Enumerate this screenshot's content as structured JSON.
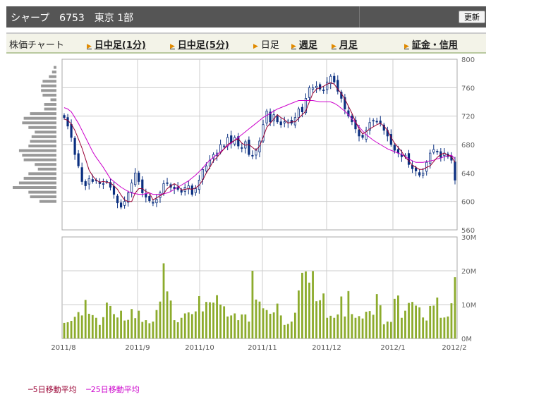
{
  "header": {
    "title": "シャープ　6753　東京 1部",
    "refresh_label": "更新"
  },
  "tabs": [
    {
      "label": "株価チャート",
      "link": false,
      "arrow": false
    },
    {
      "label": "日中足(1分)",
      "link": true,
      "arrow": true
    },
    {
      "label": "日中足(5分)",
      "link": true,
      "arrow": true
    },
    {
      "label": "日足",
      "link": false,
      "arrow": true
    },
    {
      "label": "週足",
      "link": true,
      "arrow": true
    },
    {
      "label": "月足",
      "link": true,
      "arrow": true
    },
    {
      "label": "証金・信用",
      "link": true,
      "arrow": true
    }
  ],
  "legend": {
    "ma5_label": "─5日移動平均",
    "ma25_label": "─25日移動平均",
    "ma5_color": "#990033",
    "ma25_color": "#cc00cc"
  },
  "colors": {
    "candle": "#0a2f80",
    "volume": "#8cab2c",
    "volume_profile": "#999999",
    "grid": "#cccccc"
  },
  "chart_data": [
    {
      "type": "candlestick",
      "title": "",
      "x_tick_labels": [
        "2011/8",
        "2011/9",
        "2011/10",
        "2011/11",
        "2011/12",
        "2012/1",
        "2012/2"
      ],
      "y_ticks": [
        560,
        600,
        640,
        680,
        720,
        760,
        800
      ],
      "ylim": [
        560,
        800
      ],
      "closes": [
        718,
        706,
        690,
        666,
        650,
        628,
        622,
        632,
        628,
        630,
        625,
        625,
        628,
        620,
        610,
        598,
        592,
        600,
        612,
        626,
        640,
        628,
        612,
        606,
        601,
        598,
        603,
        612,
        625,
        626,
        620,
        618,
        617,
        613,
        620,
        622,
        610,
        618,
        630,
        645,
        650,
        658,
        666,
        668,
        680,
        678,
        690,
        682,
        690,
        678,
        675,
        684,
        666,
        664,
        672,
        685,
        708,
        727,
        712,
        722,
        712,
        708,
        712,
        713,
        710,
        718,
        730,
        726,
        745,
        760,
        760,
        762,
        758,
        756,
        768,
        776,
        768,
        755,
        745,
        730,
        720,
        712,
        702,
        692,
        690,
        700,
        711,
        714,
        712,
        710,
        700,
        692,
        680,
        672,
        668,
        663,
        665,
        652,
        646,
        643,
        637,
        640,
        655,
        668,
        673,
        670,
        662,
        668,
        663,
        658,
        630
      ],
      "ma5": [
        716,
        714,
        709,
        700,
        688,
        675,
        660,
        644,
        636,
        630,
        627,
        628,
        627,
        626,
        622,
        617,
        609,
        602,
        600,
        600,
        612,
        618,
        618,
        614,
        612,
        602,
        605,
        608,
        611,
        618,
        622,
        625,
        622,
        616,
        617,
        618,
        617,
        619,
        623,
        630,
        640,
        648,
        657,
        662,
        668,
        674,
        680,
        683,
        686,
        688,
        682,
        679,
        680,
        676,
        672,
        678,
        690,
        704,
        710,
        716,
        722,
        718,
        715,
        710,
        712,
        712,
        717,
        722,
        727,
        740,
        752,
        758,
        760,
        762,
        765,
        767,
        765,
        758,
        752,
        744,
        734,
        724,
        712,
        702,
        695,
        698,
        702,
        705,
        708,
        710,
        706,
        700,
        690,
        682,
        676,
        670,
        662,
        657,
        651,
        648,
        645,
        645,
        648,
        650,
        656,
        662,
        666,
        668,
        665,
        663,
        655
      ],
      "ma25": [
        732,
        730,
        726,
        718,
        710,
        700,
        690,
        680,
        670,
        662,
        655,
        648,
        640,
        632,
        628,
        624,
        620,
        617,
        614,
        612,
        611,
        610,
        610,
        611,
        612,
        610,
        610,
        610,
        611,
        612,
        614,
        617,
        620,
        623,
        626,
        629,
        633,
        637,
        642,
        647,
        653,
        658,
        662,
        666,
        670,
        674,
        678,
        682,
        686,
        690,
        694,
        698,
        702,
        706,
        710,
        714,
        718,
        721,
        724,
        727,
        730,
        732,
        734,
        736,
        738,
        740,
        742,
        742,
        742,
        742,
        742,
        741,
        740,
        740,
        740,
        740,
        738,
        735,
        731,
        727,
        722,
        716,
        711,
        705,
        699,
        694,
        690,
        686,
        683,
        680,
        677,
        674,
        672,
        670,
        668,
        666,
        663,
        660,
        657,
        655,
        655,
        655,
        656,
        657,
        658,
        660,
        661,
        663,
        664,
        665,
        660
      ],
      "volume_profile": {
        "count": 30,
        "levels_note": ""
      }
    },
    {
      "type": "bar",
      "title": "",
      "y_tick_labels": [
        "0M",
        "10M",
        "20M",
        "30M"
      ],
      "ylim": [
        0,
        30
      ],
      "values": [
        4.6,
        4.8,
        5.2,
        6.4,
        7.8,
        6.8,
        11.4,
        7.3,
        6.9,
        6.1,
        4.0,
        6.3,
        10.6,
        9.6,
        7.2,
        6.2,
        8.2,
        5.3,
        5.5,
        8.7,
        6.0,
        8.2,
        4.9,
        5.4,
        4.5,
        5.0,
        8.4,
        10.9,
        22.2,
        13.9,
        11.2,
        5.4,
        4.8,
        6.1,
        7.4,
        7.7,
        7.2,
        8.0,
        12.5,
        8.0,
        10.8,
        10.7,
        10.6,
        12.8,
        10.0,
        9.5,
        6.5,
        6.8,
        7.4,
        5.4,
        7.1,
        7.1,
        5.0,
        20.0,
        11.5,
        10.9,
        8.9,
        8.4,
        7.3,
        7.7,
        10.3,
        6.8,
        4.0,
        4.3,
        5.0,
        7.6,
        14.2,
        19.4,
        19.8,
        16.5,
        19.9,
        11.0,
        11.3,
        13.3,
        6.1,
        6.7,
        6.1,
        7.1,
        12.4,
        6.5,
        14.0,
        7.2,
        6.1,
        6.6,
        5.9,
        7.9,
        8.1,
        7.0,
        13.1,
        9.8,
        4.2,
        5.0,
        4.9,
        11.7,
        12.7,
        6.1,
        8.2,
        10.5,
        10.8,
        9.7,
        9.2,
        6.2,
        5.3,
        9.6,
        9.7,
        12.1,
        6.1,
        6.2,
        6.5,
        10.4,
        18.1
      ]
    }
  ]
}
